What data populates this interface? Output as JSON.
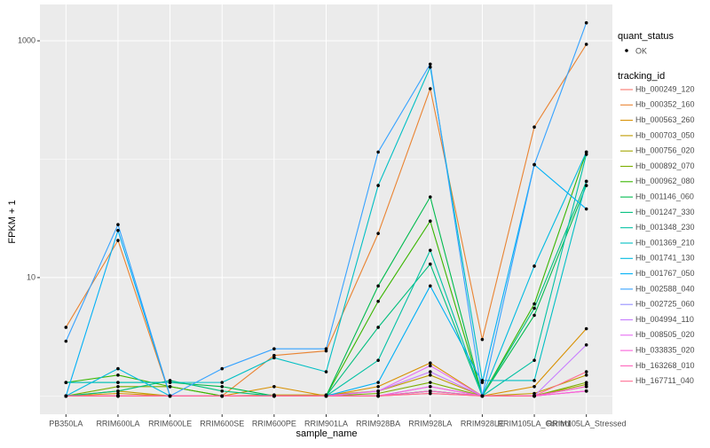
{
  "chart_data": {
    "type": "line",
    "y_label": "FPKM + 1",
    "x_label": "sample_name",
    "categories": [
      "PB350LA",
      "RRIM600LA",
      "RRIM600LE",
      "RRIM600SE",
      "RRIM600PE",
      "RRIM901LA",
      "RRIM928BA",
      "RRIM928LA",
      "RRIM928LE",
      "RRIM105LA_Control",
      "RRIM105LA_Stressed"
    ],
    "ylim": [
      0.7,
      2030
    ],
    "yticks": [
      10,
      1000
    ],
    "minor_yticks": [
      1,
      100
    ],
    "y_log": true,
    "grid": true,
    "legend_position": "right",
    "point_legend_title": "quant_status",
    "point_legend_label": "OK",
    "point_color": "#000000",
    "legend_title": "tracking_id",
    "series": [
      {
        "name": "Hb_000249_120",
        "color": "#F8766D",
        "values": [
          1,
          1,
          1,
          1,
          1,
          1,
          1,
          1.05,
          1,
          1,
          1.1
        ]
      },
      {
        "name": "Hb_000352_160",
        "color": "#EA8331",
        "values": [
          3.8,
          20.6,
          1,
          1,
          2.2,
          2.4,
          23.6,
          394,
          3,
          187,
          934
        ]
      },
      {
        "name": "Hb_000563_260",
        "color": "#D89000",
        "values": [
          1,
          1.05,
          1,
          1,
          1.2,
          1,
          1.2,
          1.9,
          1,
          1.2,
          3.7
        ]
      },
      {
        "name": "Hb_000703_050",
        "color": "#C09B00",
        "values": [
          1,
          1.1,
          1,
          1,
          1.02,
          1.02,
          1.1,
          1.5,
          1,
          1.05,
          1.5
        ]
      },
      {
        "name": "Hb_000756_020",
        "color": "#A3A500",
        "values": [
          1,
          1,
          1,
          1,
          1,
          1,
          1,
          1.1,
          1,
          1,
          1.25
        ]
      },
      {
        "name": "Hb_000892_070",
        "color": "#7CAE00",
        "values": [
          1,
          1.2,
          1.2,
          1,
          1,
          1,
          1.05,
          1.3,
          1,
          1,
          1.3
        ]
      },
      {
        "name": "Hb_000962_080",
        "color": "#39B600",
        "values": [
          1.3,
          1.5,
          1.2,
          1,
          1,
          1,
          6.3,
          30,
          1,
          6,
          115
        ]
      },
      {
        "name": "Hb_001146_060",
        "color": "#00BB4E",
        "values": [
          1.3,
          1.3,
          1.3,
          1.2,
          1,
          1,
          8.5,
          48,
          1,
          4.8,
          60
        ]
      },
      {
        "name": "Hb_001247_330",
        "color": "#00BF7D",
        "values": [
          1,
          1.1,
          1.35,
          1.1,
          1,
          1,
          3.8,
          13,
          1,
          5.5,
          65
        ]
      },
      {
        "name": "Hb_001348_230",
        "color": "#00C1A3",
        "values": [
          1,
          1,
          1,
          1,
          1,
          1,
          2,
          17,
          1,
          2,
          110
        ]
      },
      {
        "name": "Hb_001369_210",
        "color": "#00BFC4",
        "values": [
          1.3,
          1.3,
          1.3,
          1.3,
          2.1,
          1.6,
          60,
          600,
          1.35,
          1.35,
          65
        ]
      },
      {
        "name": "Hb_001741_130",
        "color": "#00BAE0",
        "values": [
          1,
          1.7,
          1,
          1,
          1,
          1,
          1,
          1.1,
          1,
          12.5,
          115
        ]
      },
      {
        "name": "Hb_001767_050",
        "color": "#00B0F6",
        "values": [
          1,
          25,
          1,
          1,
          1,
          1,
          1.3,
          8.5,
          1.3,
          90,
          38
        ]
      },
      {
        "name": "Hb_002588_040",
        "color": "#35A2FF",
        "values": [
          2.9,
          28,
          1,
          1.7,
          2.5,
          2.5,
          115,
          636,
          1,
          90,
          1420
        ]
      },
      {
        "name": "Hb_002725_060",
        "color": "#9590FF",
        "values": [
          1,
          1,
          1,
          1,
          1,
          1,
          1,
          1.2,
          1,
          1,
          1.2
        ]
      },
      {
        "name": "Hb_004994_110",
        "color": "#C77CFF",
        "values": [
          1,
          1,
          1,
          1,
          1,
          1,
          1.1,
          1.6,
          1,
          1,
          2.7
        ]
      },
      {
        "name": "Hb_008505_020",
        "color": "#E76BF3",
        "values": [
          1,
          1,
          1,
          1,
          1,
          1,
          1.1,
          1.8,
          1,
          1,
          1.1
        ]
      },
      {
        "name": "Hb_033835_020",
        "color": "#FA62DB",
        "values": [
          1,
          1,
          1,
          1,
          1,
          1,
          1,
          1.2,
          1,
          1,
          1.1
        ]
      },
      {
        "name": "Hb_163268_010",
        "color": "#FF62BC",
        "values": [
          1,
          1,
          1,
          1,
          1,
          1,
          1,
          1.1,
          1,
          1,
          1.2
        ]
      },
      {
        "name": "Hb_167711_040",
        "color": "#FF6C91",
        "values": [
          1,
          1,
          1,
          1,
          1,
          1,
          1,
          1.05,
          1,
          1,
          1.6
        ]
      }
    ]
  }
}
